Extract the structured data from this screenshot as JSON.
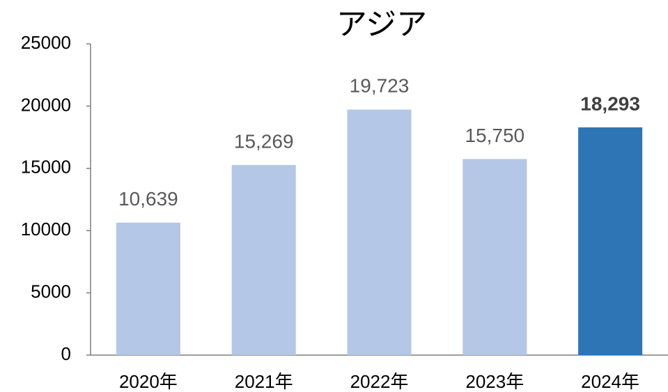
{
  "chart_data": {
    "type": "bar",
    "title": "アジア",
    "categories": [
      "2020年",
      "2021年",
      "2022年",
      "2023年",
      "2024年"
    ],
    "values": [
      10639,
      15269,
      19723,
      15750,
      18293
    ],
    "value_labels": [
      "10,639",
      "15,269",
      "19,723",
      "15,750",
      "18,293"
    ],
    "colors": [
      "#b4c7e7",
      "#b4c7e7",
      "#b4c7e7",
      "#b4c7e7",
      "#2e75b6"
    ],
    "label_bold": [
      false,
      false,
      false,
      false,
      true
    ],
    "ylim": [
      0,
      25000
    ],
    "yticks": [
      0,
      5000,
      10000,
      15000,
      20000,
      25000
    ],
    "grid": false
  }
}
